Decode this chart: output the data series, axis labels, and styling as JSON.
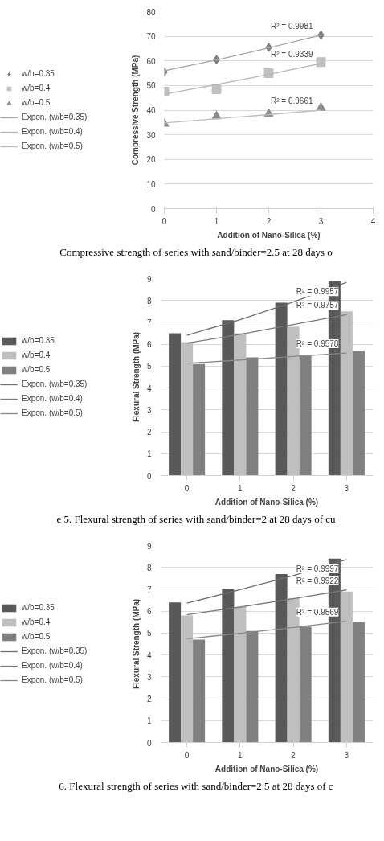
{
  "chart_data": [
    {
      "type": "scatter",
      "xlabel": "Addition of Nano-Silica (%)",
      "ylabel": "Compressive Strength (MPa)",
      "xlim": [
        0,
        4
      ],
      "xticks": [
        0,
        1,
        2,
        3,
        4
      ],
      "ylim": [
        0,
        80
      ],
      "yticks": [
        0,
        10,
        20,
        30,
        40,
        50,
        60,
        70,
        80
      ],
      "grid": "y",
      "legend": "left",
      "x": [
        0,
        1,
        2,
        3
      ],
      "series": [
        {
          "name": "w/b=0.35",
          "color": "#808080",
          "marker": "diamond",
          "values": [
            55.5,
            60.5,
            65.5,
            70.5
          ]
        },
        {
          "name": "w/b=0.4",
          "color": "#c0c0c0",
          "marker": "square",
          "values": [
            47.5,
            48.5,
            55,
            59.5
          ]
        },
        {
          "name": "w/b=0.5",
          "color": "#8c8c8c",
          "marker": "triangle",
          "values": [
            34.5,
            37.5,
            38.5,
            41
          ]
        },
        {
          "name": "Expon. (w/b=0.35)",
          "type": "line",
          "color": "#a6a6a6",
          "values": [
            56,
            60.4,
            65.3,
            70.5
          ]
        },
        {
          "name": "Expon. (w/b=0.4)",
          "type": "line",
          "color": "#b4b4b4",
          "values": [
            46.5,
            50.4,
            54.5,
            59
          ]
        },
        {
          "name": "Expon. (w/b=0.5)",
          "type": "line",
          "color": "#bcbcbc",
          "values": [
            34.8,
            36.5,
            38.2,
            40
          ]
        }
      ],
      "annotations": [
        "R² = 0.9981",
        "R² = 0.9339",
        "R² = 0.9661",
        "Compressive strength of series with sand/binder=2.5 at 28 days o"
      ]
    },
    {
      "type": "bar",
      "xlabel": "Addition of Nano-Silica (%)",
      "ylabel": "Flexural Strength (MPa)",
      "categories": [
        "0",
        "1",
        "2",
        "3"
      ],
      "ylim": [
        0,
        9
      ],
      "yticks": [
        0,
        1,
        2,
        3,
        4,
        5,
        6,
        7,
        8,
        9
      ],
      "grid": "y",
      "legend": "left",
      "series": [
        {
          "name": "w/b=0.35",
          "color": "#595959",
          "values": [
            6.5,
            7.1,
            7.9,
            8.9
          ]
        },
        {
          "name": "w/b=0.4",
          "color": "#bfbfbf",
          "values": [
            6.1,
            6.5,
            6.8,
            7.5
          ]
        },
        {
          "name": "w/b=0.5",
          "color": "#808080",
          "values": [
            5.1,
            5.4,
            5.5,
            5.7
          ]
        },
        {
          "name": "Expon. (w/b=0.35)",
          "type": "line",
          "color": "#6e6e6e",
          "values": [
            6.41,
            7.12,
            7.93,
            8.83
          ]
        },
        {
          "name": "Expon. (w/b=0.4)",
          "type": "line",
          "color": "#7a7a7a",
          "values": [
            6.05,
            6.45,
            6.9,
            7.35
          ]
        },
        {
          "name": "Expon. (w/b=0.5)",
          "type": "line",
          "color": "#888888",
          "values": [
            5.13,
            5.28,
            5.44,
            5.6
          ]
        }
      ],
      "annotations": [
        "R² = 0.9957",
        "R² = 0.9757",
        "R² = 0.9578",
        "e 5. Flexural strength of series with sand/binder=2 at 28 days of cu"
      ]
    },
    {
      "type": "bar",
      "xlabel": "Addition of Nano-Silica (%)",
      "ylabel": "Flexural Strength (MPa)",
      "categories": [
        "0",
        "1",
        "2",
        "3"
      ],
      "ylim": [
        0,
        9
      ],
      "yticks": [
        0,
        1,
        2,
        3,
        4,
        5,
        6,
        7,
        8,
        9
      ],
      "grid": "y",
      "legend": "left",
      "series": [
        {
          "name": "w/b=0.35",
          "color": "#595959",
          "values": [
            6.4,
            7.0,
            7.7,
            8.4
          ]
        },
        {
          "name": "w/b=0.4",
          "color": "#bfbfbf",
          "values": [
            5.8,
            6.2,
            6.6,
            6.9
          ]
        },
        {
          "name": "w/b=0.5",
          "color": "#808080",
          "values": [
            4.7,
            5.1,
            5.3,
            5.5
          ]
        },
        {
          "name": "Expon. (w/b=0.35)",
          "type": "line",
          "color": "#6e6e6e",
          "values": [
            6.37,
            6.98,
            7.63,
            8.36
          ]
        },
        {
          "name": "Expon. (w/b=0.4)",
          "type": "line",
          "color": "#7a7a7a",
          "values": [
            5.84,
            6.19,
            6.57,
            6.97
          ]
        },
        {
          "name": "Expon. (w/b=0.5)",
          "type": "line",
          "color": "#888888",
          "values": [
            4.74,
            4.99,
            5.26,
            5.54
          ]
        }
      ],
      "annotations": [
        "R² = 0.9997",
        "R² = 0.9922",
        "R² = 0.9569",
        "6. Flexural strength of series with sand/binder=2.5 at 28 days of c"
      ]
    }
  ]
}
